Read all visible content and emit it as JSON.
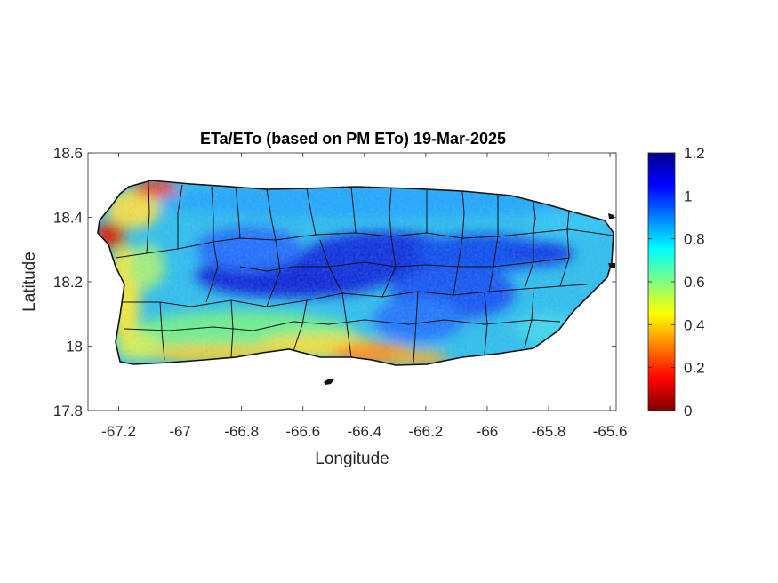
{
  "chart_data": {
    "type": "heatmap",
    "title": "ETa/ETo (based on PM ETo) 19-Mar-2025",
    "xlabel": "Longitude",
    "ylabel": "Latitude",
    "xlim": [
      -67.3,
      -65.58
    ],
    "ylim": [
      17.8,
      18.6
    ],
    "xticks": [
      "-67.2",
      "-67",
      "-66.8",
      "-66.6",
      "-66.4",
      "-66.2",
      "-66",
      "-65.8",
      "-65.6"
    ],
    "xtick_values": [
      -67.2,
      -67.0,
      -66.8,
      -66.6,
      -66.4,
      -66.2,
      -66.0,
      -65.8,
      -65.6
    ],
    "yticks": [
      "18.6",
      "18.4",
      "18.2",
      "18",
      "17.8"
    ],
    "ytick_values": [
      18.6,
      18.4,
      18.2,
      18.0,
      17.8
    ],
    "colorbar": {
      "colormap": "jet",
      "range": [
        0,
        1.2
      ],
      "ticks": [
        "1.2",
        "1",
        "0.8",
        "0.6",
        "0.4",
        "0.2",
        "0"
      ],
      "tick_values": [
        1.2,
        1.0,
        0.8,
        0.6,
        0.4,
        0.2,
        0.0
      ]
    },
    "grid": false,
    "value_pattern": {
      "north_coast": 0.75,
      "central_interior": 1.0,
      "south_coast": 0.35,
      "west_coast": 0.3,
      "east_coast": 0.8
    }
  }
}
